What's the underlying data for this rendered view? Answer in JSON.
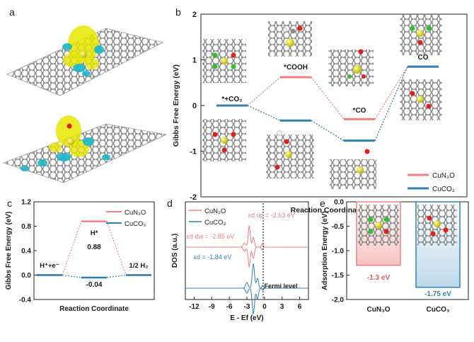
{
  "panels": {
    "a": {
      "letter": "a"
    },
    "b": {
      "letter": "b"
    },
    "c": {
      "letter": "c"
    },
    "d": {
      "letter": "d"
    },
    "e": {
      "letter": "e"
    }
  },
  "colors": {
    "CuN3O": "#f08080",
    "CuCO3": "#2f80b4",
    "yellow": "#e6e600",
    "cyan": "#19b6c9",
    "carbon": "#8c8c8c",
    "nitrogen": "#2fbf2f",
    "oxygen": "#e02020"
  },
  "chart_data": [
    {
      "id": "b",
      "type": "line",
      "ylabel": "Gibbs Free Energy (eV)",
      "xlabel": "Reaction Coordinate",
      "ylim": [
        -2,
        2
      ],
      "yticks": [
        "2",
        "1",
        "0",
        "-1",
        "-2"
      ],
      "steps": [
        "*+CO₂",
        "*COOH",
        "*CO",
        "CO"
      ],
      "series": [
        {
          "name": "CuN₃O",
          "values": [
            0.0,
            0.62,
            -0.3,
            0.85
          ]
        },
        {
          "name": "CuCO₃",
          "values": [
            0.0,
            -0.33,
            -0.77,
            0.85
          ]
        }
      ],
      "legend": "bottom-right"
    },
    {
      "id": "c",
      "type": "line",
      "ylabel": "Gibbs Free Energy (eV)",
      "xlabel": "Reaction Coordinate",
      "ylim": [
        -0.4,
        1.2
      ],
      "yticks": [
        "1.2",
        "0.8",
        "0.4",
        "0.0",
        "-0.4"
      ],
      "steps": [
        "H⁺+e⁻",
        "H*",
        "1/2 H₂"
      ],
      "series": [
        {
          "name": "CuN₃O",
          "values": [
            0.0,
            0.88,
            0.0
          ]
        },
        {
          "name": "CuCO₃",
          "values": [
            0.0,
            -0.04,
            0.0
          ]
        }
      ],
      "value_labels": [
        "0.88",
        "-0.04"
      ],
      "legend": "top-right"
    },
    {
      "id": "d",
      "type": "line",
      "ylabel": "DOS (a.u.)",
      "xlabel": "E - Ef (eV)",
      "xlim": [
        -13.5,
        7.5
      ],
      "xticks": [
        "-12",
        "-9",
        "-6",
        "-3",
        "0",
        "3",
        "6"
      ],
      "series": [
        {
          "name": "CuN₃O"
        },
        {
          "name": "CuCO₃"
        }
      ],
      "annotations": [
        "εd up = -2.53 eV",
        "εd dw = -2.85 eV",
        "εd = -1.84 eV",
        "Fermi level"
      ],
      "legend": "top-left"
    },
    {
      "id": "e",
      "type": "bar",
      "ylabel": "Adsorption Energy (eV)",
      "categories": [
        "CuN₃O",
        "CuCO₃"
      ],
      "values": [
        -1.3,
        -1.75
      ],
      "value_labels": [
        "-1.3 eV",
        "-1.75 eV"
      ],
      "ylim": [
        -2.0,
        0.0
      ],
      "yticks": [
        "0.0",
        "-0.5",
        "-1.0",
        "-1.5",
        "-2.0"
      ]
    }
  ]
}
